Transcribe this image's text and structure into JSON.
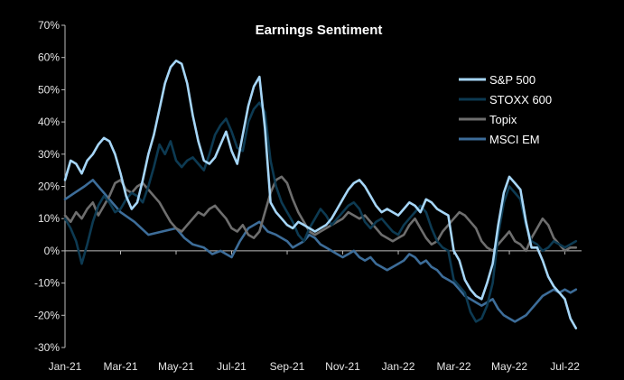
{
  "chart_data": {
    "type": "line",
    "title": "Earnings Sentiment",
    "xlabel": "",
    "ylabel": "",
    "ylim": [
      -30,
      70
    ],
    "yticks": [
      "70%",
      "60%",
      "50%",
      "40%",
      "30%",
      "20%",
      "10%",
      "0%",
      "-10%",
      "-20%",
      "-30%"
    ],
    "ytick_values": [
      70,
      60,
      50,
      40,
      30,
      20,
      10,
      0,
      -10,
      -20,
      -30
    ],
    "xticks": [
      "Jan-21",
      "Mar-21",
      "May-21",
      "Jul-21",
      "Sep-21",
      "Nov-21",
      "Jan-22",
      "Mar-22",
      "May-22",
      "Jul-22"
    ],
    "xtick_months": [
      0,
      2,
      4,
      6,
      8,
      10,
      12,
      14,
      16,
      18
    ],
    "xlim": [
      0,
      18.6
    ],
    "grid": false,
    "legend_position": "right",
    "series": [
      {
        "name": "S&P 500",
        "color": "#a6d6f7",
        "x": [
          0,
          0.2,
          0.4,
          0.6,
          0.8,
          1.0,
          1.2,
          1.4,
          1.6,
          1.8,
          2.0,
          2.2,
          2.4,
          2.6,
          2.8,
          3.0,
          3.2,
          3.4,
          3.6,
          3.8,
          4.0,
          4.2,
          4.4,
          4.6,
          4.8,
          5.0,
          5.2,
          5.4,
          5.6,
          5.8,
          6.0,
          6.2,
          6.4,
          6.6,
          6.8,
          7.0,
          7.2,
          7.4,
          7.6,
          7.8,
          8.0,
          8.2,
          8.4,
          8.6,
          8.8,
          9.0,
          9.2,
          9.4,
          9.6,
          9.8,
          10.0,
          10.2,
          10.4,
          10.6,
          10.8,
          11.0,
          11.2,
          11.4,
          11.6,
          11.8,
          12.0,
          12.2,
          12.4,
          12.6,
          12.8,
          13.0,
          13.2,
          13.4,
          13.6,
          13.8,
          14.0,
          14.2,
          14.4,
          14.6,
          14.8,
          15.0,
          15.2,
          15.4,
          15.6,
          15.8,
          16.0,
          16.2,
          16.4,
          16.6,
          16.8,
          17.0,
          17.2,
          17.4,
          17.6,
          17.8,
          18.0,
          18.2,
          18.4
        ],
        "values": [
          22,
          28,
          27,
          24,
          28,
          30,
          33,
          35,
          34,
          30,
          24,
          17,
          13,
          15,
          22,
          30,
          36,
          44,
          52,
          57,
          59,
          58,
          52,
          42,
          34,
          28,
          27,
          29,
          33,
          37,
          31,
          27,
          36,
          45,
          51,
          54,
          38,
          15,
          12,
          10,
          8,
          7,
          9,
          8,
          7,
          6,
          7,
          8,
          10,
          13,
          16,
          19,
          21,
          22,
          20,
          17,
          14,
          12,
          13,
          12,
          11,
          13,
          15,
          14,
          12,
          16,
          15,
          13,
          12,
          11,
          0,
          -3,
          -9,
          -12,
          -14,
          -15,
          -10,
          -4,
          8,
          18,
          23,
          21,
          19,
          9,
          1,
          1,
          -3,
          -8,
          -11,
          -13,
          -15,
          -21,
          -24
        ]
      },
      {
        "name": "STOXX 600",
        "color": "#0d3a52",
        "x": [
          0,
          0.2,
          0.4,
          0.6,
          0.8,
          1.0,
          1.2,
          1.4,
          1.6,
          1.8,
          2.0,
          2.2,
          2.4,
          2.6,
          2.8,
          3.0,
          3.2,
          3.4,
          3.6,
          3.8,
          4.0,
          4.2,
          4.4,
          4.6,
          4.8,
          5.0,
          5.2,
          5.4,
          5.6,
          5.8,
          6.0,
          6.2,
          6.4,
          6.6,
          6.8,
          7.0,
          7.2,
          7.4,
          7.6,
          7.8,
          8.0,
          8.2,
          8.4,
          8.6,
          8.8,
          9.0,
          9.2,
          9.4,
          9.6,
          9.8,
          10.0,
          10.2,
          10.4,
          10.6,
          10.8,
          11.0,
          11.2,
          11.4,
          11.6,
          11.8,
          12.0,
          12.2,
          12.4,
          12.6,
          12.8,
          13.0,
          13.2,
          13.4,
          13.6,
          13.8,
          14.0,
          14.2,
          14.4,
          14.6,
          14.8,
          15.0,
          15.2,
          15.4,
          15.6,
          15.8,
          16.0,
          16.2,
          16.4,
          16.6,
          16.8,
          17.0,
          17.2,
          17.4,
          17.6,
          17.8,
          18.0,
          18.2,
          18.4
        ],
        "values": [
          10,
          7,
          3,
          -4,
          2,
          9,
          14,
          17,
          15,
          12,
          13,
          16,
          18,
          17,
          15,
          20,
          26,
          33,
          30,
          34,
          28,
          26,
          28,
          29,
          27,
          25,
          30,
          36,
          39,
          41,
          37,
          32,
          31,
          40,
          44,
          46,
          43,
          28,
          20,
          15,
          12,
          9,
          5,
          3,
          7,
          10,
          13,
          11,
          8,
          10,
          12,
          14,
          15,
          13,
          9,
          7,
          9,
          10,
          8,
          6,
          5,
          8,
          10,
          12,
          14,
          12,
          7,
          3,
          1,
          0,
          -9,
          -11,
          -13,
          -19,
          -22,
          -21,
          -17,
          -10,
          5,
          15,
          20,
          18,
          16,
          8,
          3,
          2,
          0,
          1,
          3,
          2,
          1,
          2,
          3
        ]
      },
      {
        "name": "Topix",
        "color": "#6e6e6e",
        "x": [
          0,
          0.2,
          0.4,
          0.6,
          0.8,
          1.0,
          1.2,
          1.4,
          1.6,
          1.8,
          2.0,
          2.2,
          2.4,
          2.6,
          2.8,
          3.0,
          3.2,
          3.4,
          3.6,
          3.8,
          4.0,
          4.2,
          4.4,
          4.6,
          4.8,
          5.0,
          5.2,
          5.4,
          5.6,
          5.8,
          6.0,
          6.2,
          6.4,
          6.6,
          6.8,
          7.0,
          7.2,
          7.4,
          7.6,
          7.8,
          8.0,
          8.2,
          8.4,
          8.6,
          8.8,
          9.0,
          9.2,
          9.4,
          9.6,
          9.8,
          10.0,
          10.2,
          10.4,
          10.6,
          10.8,
          11.0,
          11.2,
          11.4,
          11.6,
          11.8,
          12.0,
          12.2,
          12.4,
          12.6,
          12.8,
          13.0,
          13.2,
          13.4,
          13.6,
          13.8,
          14.0,
          14.2,
          14.4,
          14.6,
          14.8,
          15.0,
          15.2,
          15.4,
          15.6,
          15.8,
          16.0,
          16.2,
          16.4,
          16.6,
          16.8,
          17.0,
          17.2,
          17.4,
          17.6,
          17.8,
          18.0,
          18.2,
          18.4
        ],
        "values": [
          11,
          9,
          12,
          10,
          13,
          15,
          11,
          14,
          17,
          21,
          22,
          19,
          18,
          20,
          21,
          19,
          17,
          15,
          12,
          9,
          7,
          6,
          8,
          10,
          12,
          11,
          13,
          14,
          12,
          10,
          7,
          6,
          8,
          5,
          4,
          6,
          12,
          18,
          22,
          23,
          21,
          16,
          12,
          9,
          6,
          5,
          6,
          7,
          8,
          9,
          10,
          12,
          11,
          10,
          11,
          9,
          7,
          5,
          4,
          3,
          4,
          5,
          8,
          10,
          7,
          4,
          2,
          3,
          6,
          8,
          10,
          12,
          11,
          9,
          7,
          3,
          1,
          0,
          2,
          4,
          6,
          3,
          2,
          0,
          4,
          7,
          10,
          8,
          4,
          2,
          0,
          1,
          1
        ]
      },
      {
        "name": "MSCI EM",
        "color": "#3d6d99",
        "x": [
          0,
          0.35,
          0.7,
          1.0,
          1.5,
          2.0,
          2.5,
          3.0,
          3.5,
          4.0,
          4.3,
          4.6,
          5.0,
          5.3,
          5.6,
          6.0,
          6.3,
          6.6,
          7.0,
          7.3,
          7.6,
          8.0,
          8.2,
          8.4,
          8.6,
          8.8,
          9.0,
          9.2,
          9.4,
          9.6,
          9.8,
          10.0,
          10.2,
          10.4,
          10.6,
          10.8,
          11.0,
          11.2,
          11.4,
          11.6,
          11.8,
          12.0,
          12.2,
          12.4,
          12.6,
          12.8,
          13.0,
          13.2,
          13.4,
          13.6,
          13.8,
          14.0,
          14.2,
          14.4,
          14.6,
          14.8,
          15.0,
          15.2,
          15.4,
          15.6,
          15.8,
          16.0,
          16.2,
          16.4,
          16.6,
          16.8,
          17.0,
          17.2,
          17.4,
          17.6,
          17.8,
          18.0,
          18.2,
          18.4
        ],
        "values": [
          16,
          18,
          20,
          22,
          17,
          12,
          9,
          5,
          6,
          7,
          4,
          2,
          1,
          -1,
          0,
          -2,
          3,
          7,
          9,
          6,
          5,
          3,
          1,
          2,
          3,
          5,
          4,
          2,
          1,
          0,
          -1,
          -2,
          -1,
          0,
          -2,
          -3,
          -2,
          -4,
          -5,
          -6,
          -5,
          -4,
          -3,
          -1,
          -2,
          -4,
          -3,
          -5,
          -6,
          -8,
          -9,
          -10,
          -12,
          -14,
          -15,
          -16,
          -17,
          -16,
          -15,
          -18,
          -20,
          -21,
          -22,
          -21,
          -20,
          -18,
          -16,
          -14,
          -13,
          -12,
          -13,
          -12,
          -13,
          -12
        ]
      }
    ]
  }
}
